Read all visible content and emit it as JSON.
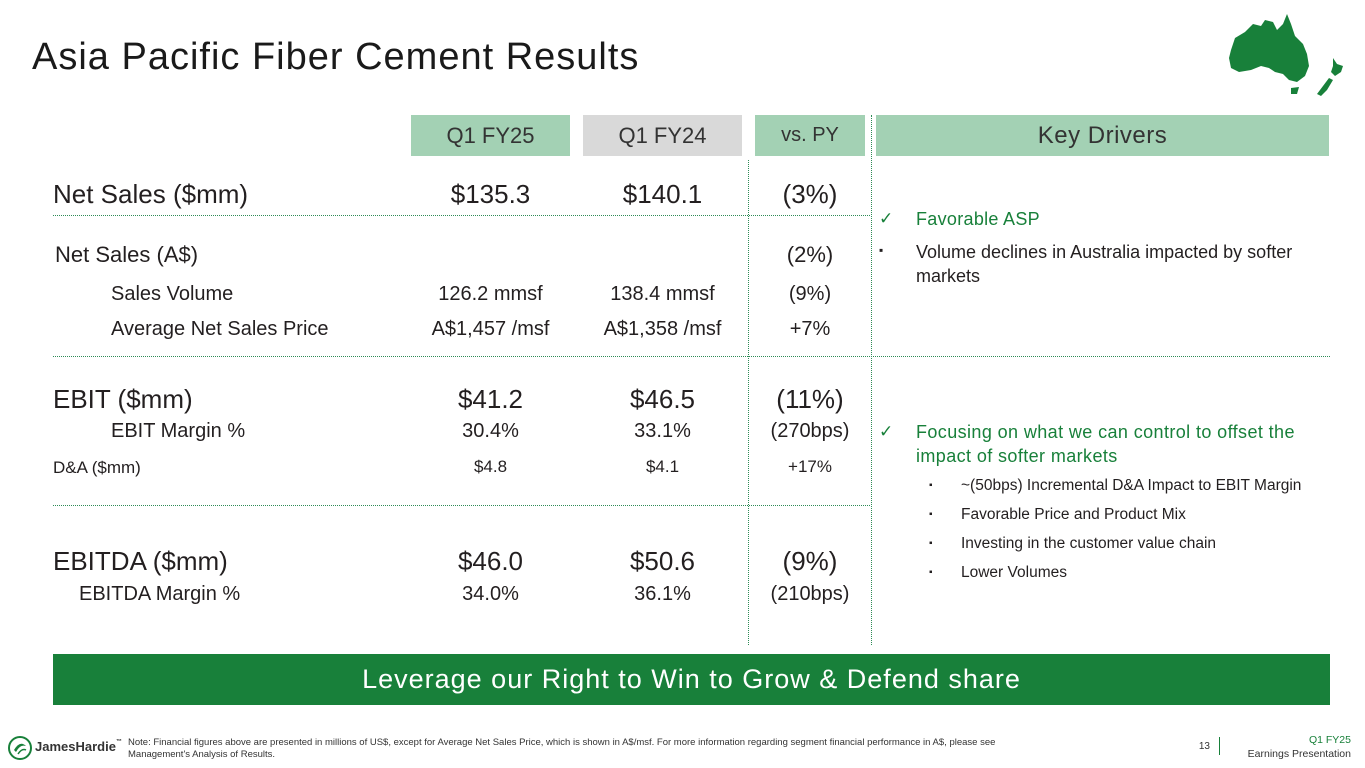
{
  "title": "Asia Pacific Fiber Cement Results",
  "headers": {
    "q1": "Q1 FY25",
    "py": "Q1 FY24",
    "vs": "vs. PY",
    "drivers": "Key Drivers"
  },
  "rows": {
    "net_sales": {
      "label": "Net Sales ($mm)",
      "q1": "$135.3",
      "py": "$140.1",
      "vs": "(3%)"
    },
    "net_sales_aud": {
      "label": "Net Sales (A$)",
      "vs": "(2%)"
    },
    "sales_volume": {
      "label": "Sales Volume",
      "q1": "126.2 mmsf",
      "py": "138.4 mmsf",
      "vs": "(9%)"
    },
    "avg_price": {
      "label": "Average Net Sales Price",
      "q1": "A$1,457 /msf",
      "py": "A$1,358 /msf",
      "vs": "+7%"
    },
    "ebit": {
      "label": "EBIT ($mm)",
      "q1": "$41.2",
      "py": "$46.5",
      "vs": "(11%)"
    },
    "ebit_margin": {
      "label": "EBIT Margin %",
      "q1": "30.4%",
      "py": "33.1%",
      "vs": "(270bps)"
    },
    "da": {
      "label": "D&A ($mm)",
      "q1": "$4.8",
      "py": "$4.1",
      "vs": "+17%"
    },
    "ebitda": {
      "label": "EBITDA ($mm)",
      "q1": "$46.0",
      "py": "$50.6",
      "vs": "(9%)"
    },
    "ebitda_margin": {
      "label": "EBITDA Margin %",
      "q1": "34.0%",
      "py": "36.1%",
      "vs": "(210bps)"
    }
  },
  "drivers": {
    "top": {
      "check_mark": "✓",
      "highlight": "Favorable ASP",
      "bullet_mark": "▪",
      "bullet": "Volume declines in Australia impacted by softer markets"
    },
    "bottom": {
      "check_mark": "✓",
      "highlight": "Focusing on what we can control to offset the impact of softer markets",
      "bullet_mark": "▪",
      "bullets": [
        "~(50bps) Incremental D&A Impact to EBIT Margin",
        "Favorable Price and Product Mix",
        "Investing in the customer value chain",
        "Lower Volumes"
      ]
    }
  },
  "banner": "Leverage our Right to Win to Grow & Defend share",
  "footer": {
    "logo_text": "JamesHardie",
    "logo_tm": "™",
    "note": "Note: Financial figures above are presented in millions of US$, except for Average Net Sales Price, which is shown in A$/msf. For more information regarding segment financial performance in A$, please see Management's Analysis of Results.",
    "page": "13",
    "period": "Q1 FY25",
    "doc": "Earnings Presentation"
  },
  "colors": {
    "brand_green": "#18803a",
    "header_green": "#a3d1b4",
    "header_gray": "#d9d9d9"
  },
  "icons": {
    "map": "australia-nz-map-icon",
    "logo": "james-hardie-logo-icon"
  }
}
